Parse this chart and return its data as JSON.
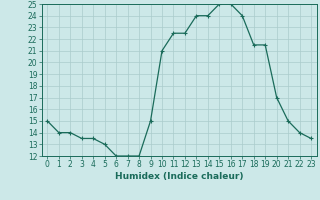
{
  "x": [
    0,
    1,
    2,
    3,
    4,
    5,
    6,
    7,
    8,
    9,
    10,
    11,
    12,
    13,
    14,
    15,
    16,
    17,
    18,
    19,
    20,
    21,
    22,
    23
  ],
  "y": [
    15,
    14,
    14,
    13.5,
    13.5,
    13,
    12,
    12,
    12,
    15,
    21,
    22.5,
    22.5,
    24,
    24,
    25,
    25,
    24,
    21.5,
    21.5,
    17,
    15,
    14,
    13.5
  ],
  "line_color": "#1a6b5a",
  "marker": "+",
  "bg_color": "#cce8e8",
  "grid_color": "#aacccc",
  "xlabel": "Humidex (Indice chaleur)",
  "xlim": [
    -0.5,
    23.5
  ],
  "ylim": [
    12,
    25
  ],
  "xticks": [
    0,
    1,
    2,
    3,
    4,
    5,
    6,
    7,
    8,
    9,
    10,
    11,
    12,
    13,
    14,
    15,
    16,
    17,
    18,
    19,
    20,
    21,
    22,
    23
  ],
  "yticks": [
    12,
    13,
    14,
    15,
    16,
    17,
    18,
    19,
    20,
    21,
    22,
    23,
    24,
    25
  ],
  "tick_fontsize": 5.5,
  "label_fontsize": 6.5
}
